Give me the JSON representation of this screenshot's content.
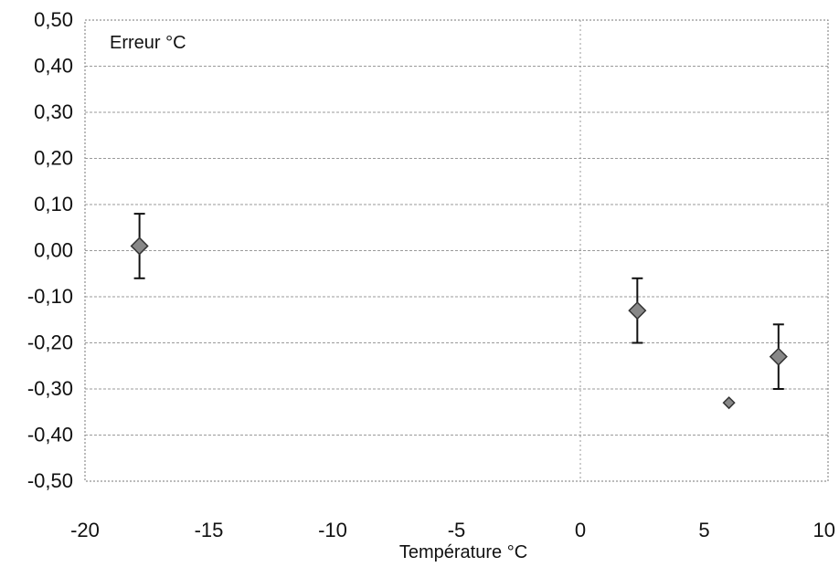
{
  "chart_data": {
    "type": "scatter",
    "title": "Erreur °C",
    "xlabel": "Température °C",
    "ylabel": "",
    "xlim": [
      -20,
      10
    ],
    "ylim": [
      -0.5,
      0.5
    ],
    "x_ticks": [
      "-20",
      "-15",
      "-10",
      "-5",
      "0",
      "5",
      "10"
    ],
    "y_ticks": [
      "0,50",
      "0,40",
      "0,30",
      "0,20",
      "0,10",
      "0,00",
      "-0,10",
      "-0,20",
      "-0,30",
      "-0,40",
      "-0,50"
    ],
    "grid": "horizontal dotted lines; vertical dotted line at x=0",
    "series": [
      {
        "points": [
          {
            "x": -17.8,
            "y": 0.01,
            "err": 0.07
          },
          {
            "x": 2.3,
            "y": -0.13,
            "err": 0.07
          },
          {
            "x": 8.0,
            "y": -0.23,
            "err": 0.07
          },
          {
            "x": 6.0,
            "y": -0.33,
            "err": 0
          }
        ],
        "marker": "diamond",
        "color": "#888888"
      }
    ]
  }
}
